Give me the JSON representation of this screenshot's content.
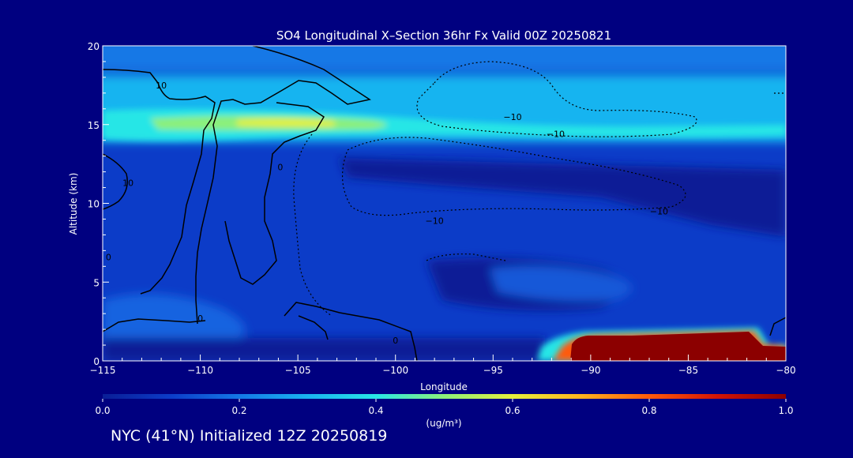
{
  "colors": {
    "background": "#000080",
    "text": "#ffffff",
    "contour": "#000000"
  },
  "chart_data": {
    "type": "heatmap",
    "title": "SO4 Longitudinal X–Section 36hr  Fx Valid 00Z 20250821",
    "xlabel": "Longitude",
    "ylabel": "Altitude (km)",
    "xlim": [
      -115,
      -80
    ],
    "ylim": [
      0,
      20
    ],
    "x_ticks": [
      -115,
      -110,
      -105,
      -100,
      -95,
      -90,
      -85,
      -80
    ],
    "x_tick_labels": [
      "−115",
      "−110",
      "−105",
      "−100",
      "−95",
      "−90",
      "−85",
      "−80"
    ],
    "y_ticks": [
      0,
      5,
      10,
      15,
      20
    ],
    "y_tick_labels": [
      "0",
      "5",
      "10",
      "15",
      "20"
    ],
    "colorscale": {
      "label": "(ug/m³)",
      "range": [
        0.0,
        1.0
      ],
      "ticks": [
        0.0,
        0.2,
        0.4,
        0.6,
        0.8,
        1.0
      ],
      "tick_labels": [
        "0.0",
        "0.2",
        "0.4",
        "0.6",
        "0.8",
        "1.0"
      ],
      "colors": [
        "#0a1e96",
        "#0c3cc8",
        "#1478e6",
        "#19b4f0",
        "#28e6e6",
        "#8cf07a",
        "#e6f03c",
        "#ffb41e",
        "#ff5a0a",
        "#d21405",
        "#8c0000"
      ]
    },
    "features": [
      {
        "name": "upper SO4 layer",
        "lon_range": [
          -115,
          -80
        ],
        "altitude_km": 15,
        "peak_value": 0.55
      },
      {
        "name": "surface SO4 maximum",
        "lon_range": [
          -90.5,
          -81
        ],
        "altitude_km": [
          0,
          1.6
        ],
        "peak_value": 1.0
      },
      {
        "name": "mid-level background",
        "lon_range": [
          -115,
          -80
        ],
        "altitude_km": [
          0,
          13
        ],
        "value": 0.12
      }
    ],
    "contour_labels": [
      {
        "text": "10",
        "lon": -112.0,
        "alt": 17.5
      },
      {
        "text": "−10",
        "lon": -94.0,
        "alt": 15.5
      },
      {
        "text": "−10",
        "lon": -91.8,
        "alt": 14.4
      },
      {
        "text": "−10",
        "lon": -98.0,
        "alt": 8.9
      },
      {
        "text": "10",
        "lon": -113.7,
        "alt": 11.3
      },
      {
        "text": "0",
        "lon": -105.9,
        "alt": 12.3
      },
      {
        "text": "0",
        "lon": -110.0,
        "alt": 2.7
      },
      {
        "text": "0",
        "lon": -114.7,
        "alt": 6.6
      },
      {
        "text": "0",
        "lon": -100.0,
        "alt": 1.3
      },
      {
        "text": "−10",
        "lon": -86.5,
        "alt": 9.5
      }
    ]
  },
  "footer": {
    "caption": "NYC (41°N) Initialized 12Z 20250819"
  }
}
